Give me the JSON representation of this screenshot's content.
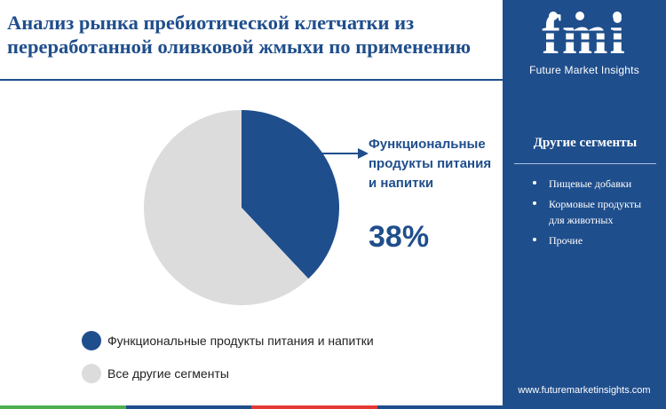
{
  "title": "Анализ рынка пребиотической клетчатки из переработанной оливковой жмыхи по применению",
  "brand": {
    "logo_text": "fmi",
    "tagline": "Future Market Insights",
    "website": "www.futuremarketinsights.com"
  },
  "sidebar": {
    "heading": "Другие сегменты",
    "items": [
      "Пищевые добавки",
      "Кормовые продукты для животных",
      "Прочие"
    ]
  },
  "callout": {
    "label": "Функциональные  продукты питания и напитки",
    "value": "38%"
  },
  "chart_data": {
    "type": "pie",
    "slices": [
      {
        "label": "Функциональные продукты питания и напитки",
        "value": 38,
        "color": "#1f4e8c"
      },
      {
        "label": "Все другие сегменты",
        "value": 62,
        "color": "#dcdcdc"
      }
    ],
    "legend_position": "bottom-left"
  },
  "colors": {
    "accent": "#1f4e8c",
    "footer_segments": [
      "#4caf50",
      "#1f4e8c",
      "#e53935",
      "#1f4e8c"
    ]
  }
}
